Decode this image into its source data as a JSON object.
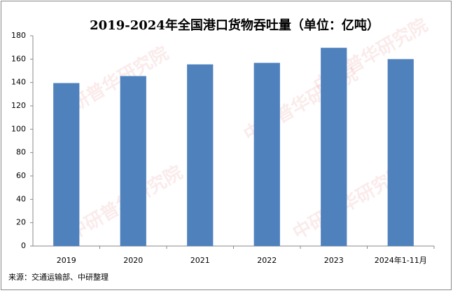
{
  "chart_data": {
    "type": "bar",
    "title": "2019-2024年全国港口货物吞吐量（单位：亿吨）",
    "categories": [
      "2019",
      "2020",
      "2021",
      "2022",
      "2023",
      "2024年1-11月"
    ],
    "values": [
      139.5,
      145.5,
      155.5,
      156.8,
      169.7,
      160
    ],
    "color": "#4f81bd",
    "ylim": [
      0,
      180
    ],
    "yticks": [
      0,
      20,
      40,
      60,
      80,
      100,
      120,
      140,
      160,
      180
    ],
    "grid": false,
    "source": "来源：交通运输部、中研整理",
    "watermark": "中研普华研究院"
  }
}
